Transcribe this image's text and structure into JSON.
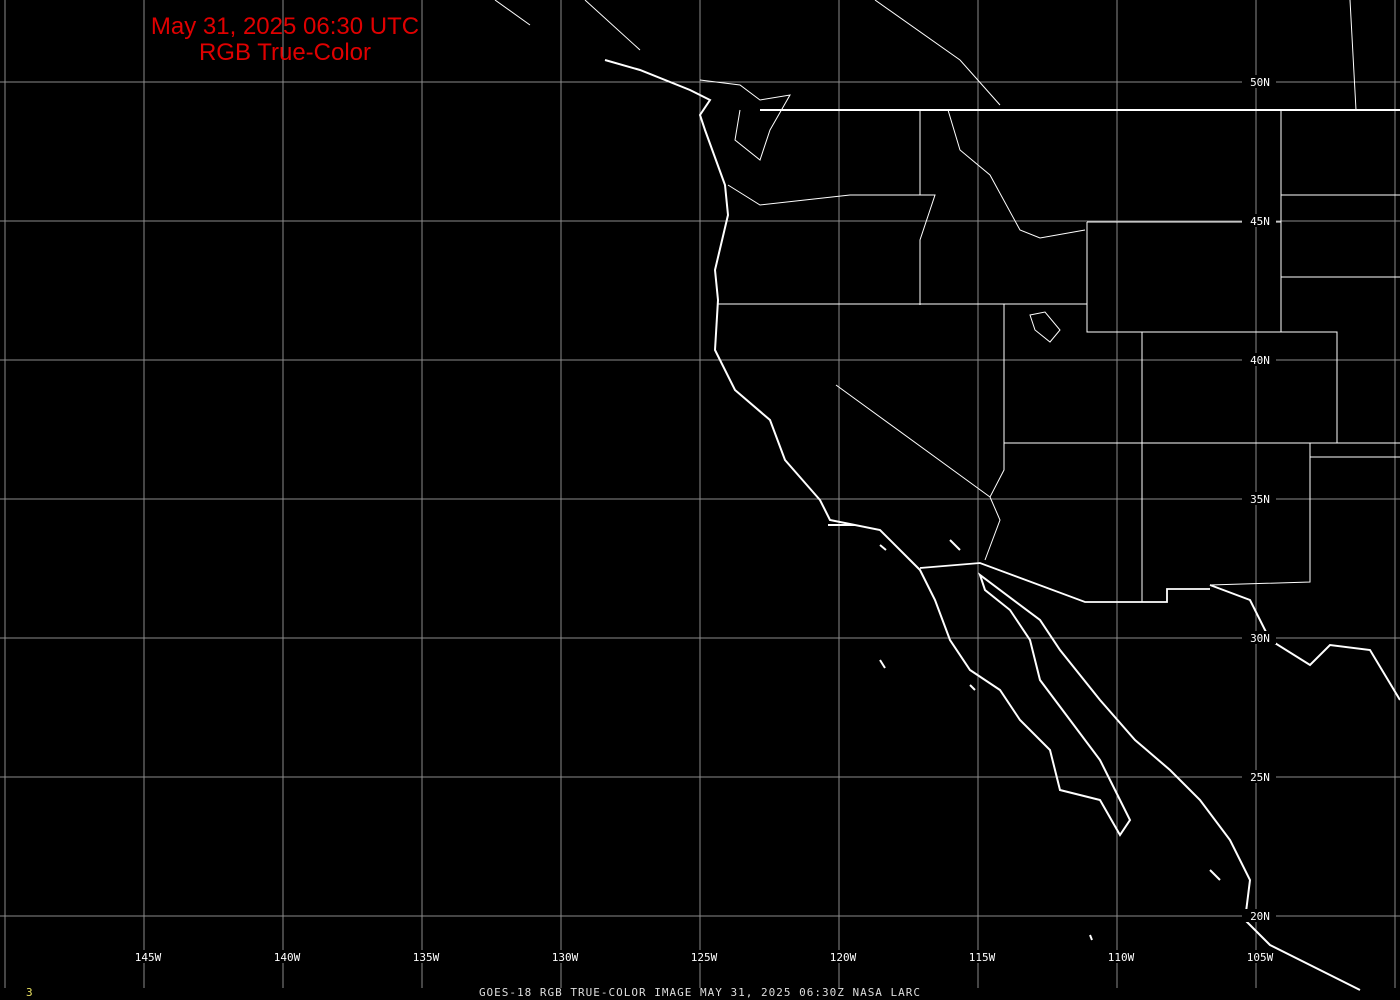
{
  "title": {
    "line1": "May 31, 2025 06:30 UTC",
    "line2": "RGB True-Color",
    "color": "#e00000"
  },
  "footer": "GOES-18 RGB TRUE-COLOR IMAGE   MAY 31, 2025 06:30Z    NASA LARC",
  "frame_number": "3",
  "frame_color": "#e8e060",
  "grid": {
    "color": "#8a8a8a",
    "longitudes": [
      "150W",
      "145W",
      "140W",
      "135W",
      "130W",
      "125W",
      "120W",
      "115W",
      "110W",
      "105W",
      "100W"
    ],
    "latitudes": [
      "50N",
      "45N",
      "40N",
      "35N",
      "30N",
      "25N",
      "20N"
    ],
    "longitude_labels": [
      "145W",
      "140W",
      "135W",
      "130W",
      "125W",
      "120W",
      "115W",
      "110W",
      "105W"
    ],
    "latitude_labels": [
      "50N",
      "45N",
      "40N",
      "35N",
      "30N",
      "25N",
      "20N"
    ]
  },
  "map": {
    "projection": "lat-lon",
    "boundaries_color": "#ffffff",
    "background": "#000000"
  }
}
